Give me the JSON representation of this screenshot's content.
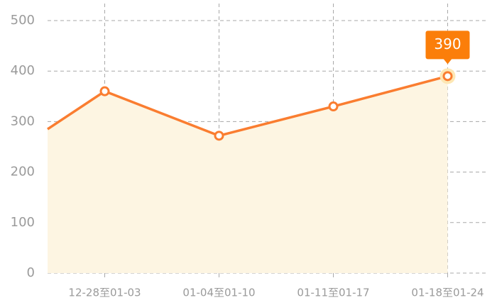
{
  "chart_data": {
    "type": "line",
    "categories": [
      null,
      "12-28至01-03",
      "01-04至01-10",
      "01-11至01-17",
      "01-18至01-24"
    ],
    "series": [
      {
        "color": "#fa7d30",
        "area_color": "#fdf5e2",
        "values": [
          285,
          360,
          272,
          330,
          390
        ]
      }
    ],
    "ylim": [
      0,
      500
    ],
    "yticks": [
      0,
      100,
      200,
      300,
      400,
      500
    ],
    "grid": true,
    "tooltip": {
      "index": 4,
      "color": "#fb7e0a"
    }
  }
}
